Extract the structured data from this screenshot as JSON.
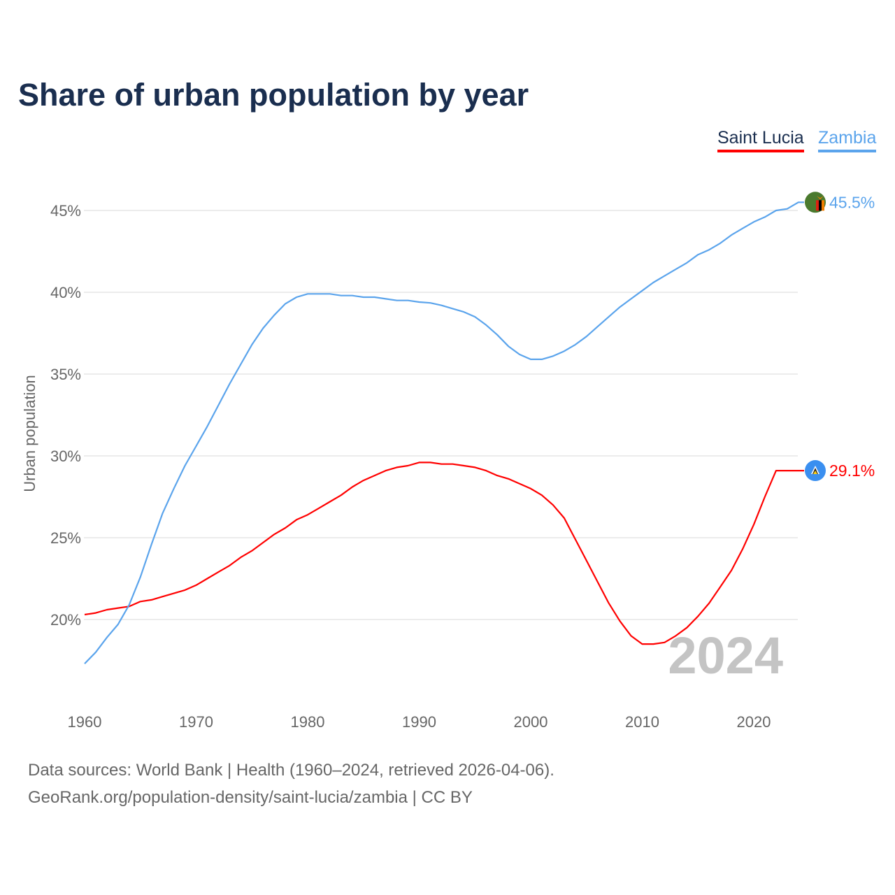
{
  "chart_data": {
    "type": "line",
    "title": "Share of urban population by year",
    "xlabel": "",
    "ylabel": "Urban population",
    "xlim": [
      1960,
      2024
    ],
    "ylim": [
      16,
      47
    ],
    "x_ticks": [
      1960,
      1970,
      1980,
      1990,
      2000,
      2010,
      2020
    ],
    "y_ticks": [
      20,
      25,
      30,
      35,
      40,
      45
    ],
    "y_tick_labels": [
      "20%",
      "25%",
      "30%",
      "35%",
      "40%",
      "45%"
    ],
    "x_tick_labels": [
      "1960",
      "1970",
      "1980",
      "1990",
      "2000",
      "2010",
      "2020"
    ],
    "grid": true,
    "legend_placement": "top-right",
    "year_watermark": "2024",
    "x": [
      1960,
      1961,
      1962,
      1963,
      1964,
      1965,
      1966,
      1967,
      1968,
      1969,
      1970,
      1971,
      1972,
      1973,
      1974,
      1975,
      1976,
      1977,
      1978,
      1979,
      1980,
      1981,
      1982,
      1983,
      1984,
      1985,
      1986,
      1987,
      1988,
      1989,
      1990,
      1991,
      1992,
      1993,
      1994,
      1995,
      1996,
      1997,
      1998,
      1999,
      2000,
      2001,
      2002,
      2003,
      2004,
      2005,
      2006,
      2007,
      2008,
      2009,
      2010,
      2011,
      2012,
      2013,
      2014,
      2015,
      2016,
      2017,
      2018,
      2019,
      2020,
      2021,
      2022,
      2023,
      2024
    ],
    "series": [
      {
        "name": "Saint Lucia",
        "color": "#ff0000",
        "end_label": "29.1%",
        "flag": "saint-lucia",
        "values": [
          20.3,
          20.4,
          20.6,
          20.7,
          20.8,
          21.1,
          21.2,
          21.4,
          21.6,
          21.8,
          22.1,
          22.5,
          22.9,
          23.3,
          23.8,
          24.2,
          24.7,
          25.2,
          25.6,
          26.1,
          26.4,
          26.8,
          27.2,
          27.6,
          28.1,
          28.5,
          28.8,
          29.1,
          29.3,
          29.4,
          29.6,
          29.6,
          29.5,
          29.5,
          29.4,
          29.3,
          29.1,
          28.8,
          28.6,
          28.3,
          28.0,
          27.6,
          27.0,
          26.2,
          24.9,
          23.6,
          22.3,
          21.0,
          19.9,
          19.0,
          18.5,
          18.5,
          18.6,
          19.0,
          19.5,
          20.2,
          21.0,
          22.0,
          23.0,
          24.3,
          25.8,
          27.5,
          29.1,
          29.1,
          29.1
        ]
      },
      {
        "name": "Zambia",
        "color": "#5ba4ec",
        "end_label": "45.5%",
        "flag": "zambia",
        "values": [
          17.3,
          18.0,
          18.9,
          19.7,
          20.9,
          22.6,
          24.6,
          26.5,
          28.0,
          29.4,
          30.6,
          31.8,
          33.1,
          34.4,
          35.6,
          36.8,
          37.8,
          38.6,
          39.3,
          39.7,
          39.9,
          39.9,
          39.9,
          39.8,
          39.8,
          39.7,
          39.7,
          39.6,
          39.5,
          39.5,
          39.4,
          39.35,
          39.2,
          39.0,
          38.8,
          38.5,
          38.0,
          37.4,
          36.7,
          36.2,
          35.9,
          35.9,
          36.1,
          36.4,
          36.8,
          37.3,
          37.9,
          38.5,
          39.1,
          39.6,
          40.1,
          40.6,
          41.0,
          41.4,
          41.8,
          42.3,
          42.6,
          43.0,
          43.5,
          43.9,
          44.3,
          44.6,
          45.0,
          45.1,
          45.5
        ]
      }
    ]
  },
  "footer": {
    "line1": "Data sources: World Bank | Health (1960–2024, retrieved 2026-04-06).",
    "line2": "GeoRank.org/population-density/saint-lucia/zambia | CC BY"
  }
}
